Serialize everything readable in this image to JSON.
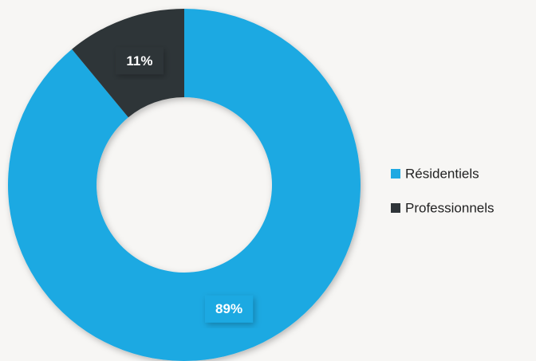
{
  "chart_data": {
    "type": "donut",
    "categories": [
      "Résidentiels",
      "Professionnels"
    ],
    "values": [
      89,
      11
    ],
    "value_labels": [
      "89%",
      "11%"
    ],
    "colors": [
      "#1fa9e2",
      "#2f3539"
    ],
    "legend": "right"
  }
}
